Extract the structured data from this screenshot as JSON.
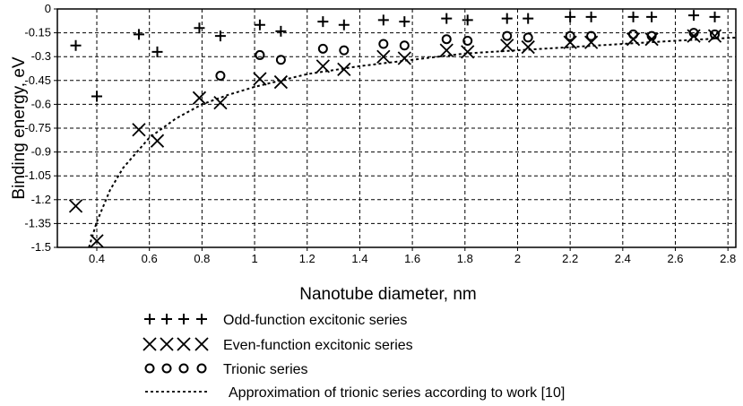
{
  "chart_data": {
    "type": "scatter",
    "title": "",
    "xlabel": "Nanotube diameter, nm",
    "ylabel": "Binding energy, eV",
    "xlim": [
      0.25,
      2.83
    ],
    "ylim": [
      -1.5,
      0
    ],
    "x_ticks": [
      "0.4",
      "0.6",
      "0.8",
      "1",
      "1.2",
      "1.4",
      "1.6",
      "1.8",
      "2",
      "2.2",
      "2.4",
      "2.6",
      "2.8"
    ],
    "y_ticks": [
      "0",
      "-0.15",
      "-0.3",
      "-0.45",
      "-0.6",
      "-0.75",
      "-0.9",
      "-1.05",
      "-1.2",
      "-1.35",
      "-1.5"
    ],
    "grid": true,
    "legend_position": "bottom",
    "series": [
      {
        "name": "Odd-function excitonic series",
        "marker": "plus",
        "x": [
          0.32,
          0.4,
          0.56,
          0.63,
          0.79,
          0.87,
          1.02,
          1.1,
          1.26,
          1.34,
          1.49,
          1.57,
          1.73,
          1.81,
          1.96,
          2.04,
          2.2,
          2.28,
          2.44,
          2.51,
          2.67,
          2.75
        ],
        "y": [
          -0.23,
          -0.55,
          -0.16,
          -0.27,
          -0.12,
          -0.17,
          -0.1,
          -0.14,
          -0.08,
          -0.1,
          -0.07,
          -0.08,
          -0.06,
          -0.07,
          -0.06,
          -0.06,
          -0.05,
          -0.05,
          -0.05,
          -0.05,
          -0.04,
          -0.05
        ]
      },
      {
        "name": "Even-function excitonic series",
        "marker": "x",
        "x": [
          0.32,
          0.4,
          0.56,
          0.63,
          0.79,
          0.87,
          1.02,
          1.1,
          1.26,
          1.34,
          1.49,
          1.57,
          1.73,
          1.81,
          1.96,
          2.04,
          2.2,
          2.28,
          2.44,
          2.51,
          2.67,
          2.75
        ],
        "y": [
          -1.24,
          -1.46,
          -0.76,
          -0.83,
          -0.56,
          -0.59,
          -0.44,
          -0.46,
          -0.36,
          -0.38,
          -0.3,
          -0.31,
          -0.26,
          -0.27,
          -0.23,
          -0.24,
          -0.21,
          -0.21,
          -0.19,
          -0.19,
          -0.17,
          -0.17
        ]
      },
      {
        "name": "Trionic series",
        "marker": "circle",
        "x": [
          0.87,
          1.02,
          1.1,
          1.26,
          1.34,
          1.49,
          1.57,
          1.73,
          1.81,
          1.96,
          2.04,
          2.2,
          2.28,
          2.44,
          2.51,
          2.67,
          2.75
        ],
        "y": [
          -0.42,
          -0.29,
          -0.32,
          -0.25,
          -0.26,
          -0.22,
          -0.23,
          -0.19,
          -0.2,
          -0.17,
          -0.18,
          -0.17,
          -0.17,
          -0.16,
          -0.17,
          -0.15,
          -0.16
        ]
      },
      {
        "name": "Approximation of trionic series according to work [10]",
        "marker": "dashed-line",
        "x": [
          0.37,
          0.4,
          0.45,
          0.5,
          0.6,
          0.7,
          0.8,
          0.9,
          1.0,
          1.2,
          1.4,
          1.6,
          1.8,
          2.0,
          2.2,
          2.4,
          2.6,
          2.83
        ],
        "y": [
          -1.5,
          -1.34,
          -1.14,
          -1.0,
          -0.81,
          -0.69,
          -0.6,
          -0.54,
          -0.49,
          -0.41,
          -0.36,
          -0.32,
          -0.28,
          -0.26,
          -0.24,
          -0.22,
          -0.2,
          -0.18
        ]
      }
    ]
  }
}
